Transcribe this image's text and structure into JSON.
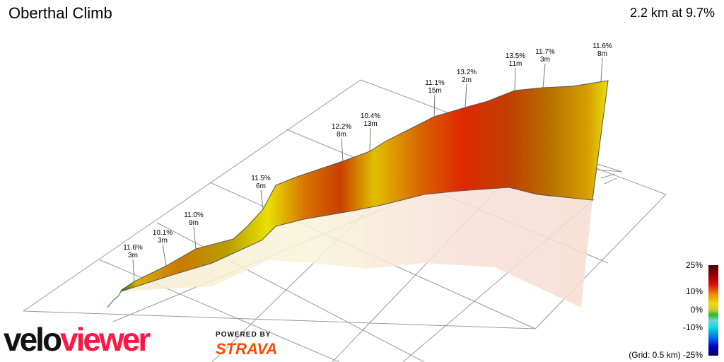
{
  "header": {
    "title": "Oberthal Climb",
    "summary": "2.2 km at 9.7%"
  },
  "chart_data": {
    "type": "area",
    "title": "Oberthal Climb",
    "subtitle": "2.2 km at 9.7%",
    "projection": "3d",
    "grid": true,
    "grid_note": "(Grid: 0.5 km)",
    "annotations": [
      {
        "gradient": "11.6%",
        "length": "3m"
      },
      {
        "gradient": "10.1%",
        "length": "3m"
      },
      {
        "gradient": "11.0%",
        "length": "9m"
      },
      {
        "gradient": "11.5%",
        "length": "6m"
      },
      {
        "gradient": "12.2%",
        "length": "8m"
      },
      {
        "gradient": "10.4%",
        "length": "13m"
      },
      {
        "gradient": "11.1%",
        "length": "15m"
      },
      {
        "gradient": "13.2%",
        "length": "2m"
      },
      {
        "gradient": "13.5%",
        "length": "11m"
      },
      {
        "gradient": "11.7%",
        "length": "3m"
      },
      {
        "gradient": "11.6%",
        "length": "8m"
      }
    ],
    "legend": {
      "placement": "bottom-right",
      "ticks": [
        "25%",
        "10%",
        "0%",
        "-10%",
        "-25%"
      ],
      "colors": {
        "max": "#4a0000",
        "high": "#e01010",
        "mid": "#e8e000",
        "zero": "#20c020",
        "neg": "#10e0e0",
        "min": "#000060"
      }
    }
  },
  "branding": {
    "logo_part1": "velo",
    "logo_part2": "viewer",
    "powered_by": "POWERED BY",
    "strava": "STRAVA"
  }
}
